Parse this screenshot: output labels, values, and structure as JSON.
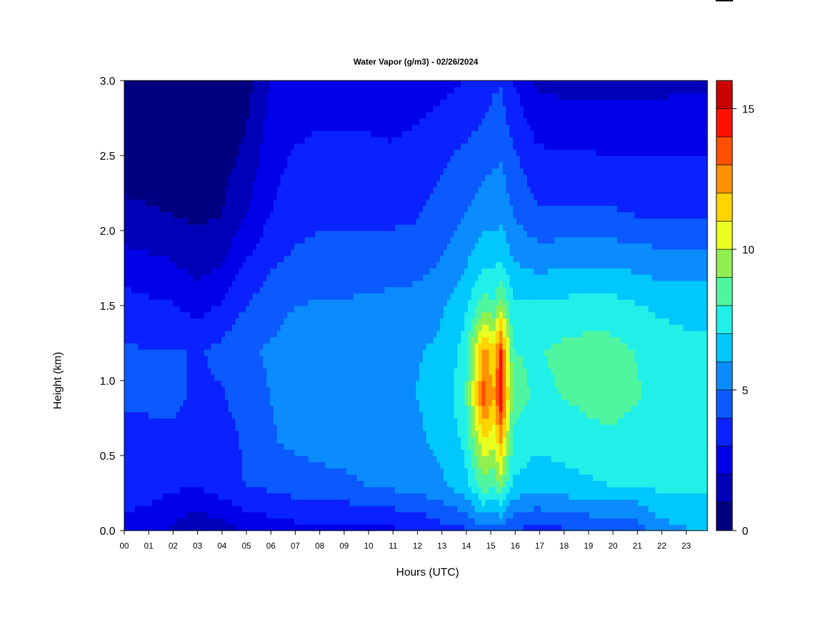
{
  "chart_data": {
    "type": "heatmap",
    "title": "Water Vapor (g/m3) - 02/26/2024",
    "xlabel": "Hours (UTC)",
    "ylabel": "Height (km)",
    "x_ticks": [
      "00",
      "01",
      "02",
      "03",
      "04",
      "05",
      "06",
      "07",
      "08",
      "09",
      "10",
      "11",
      "12",
      "13",
      "14",
      "15",
      "16",
      "17",
      "18",
      "19",
      "20",
      "21",
      "22",
      "23"
    ],
    "y_ticks": [
      "0.0",
      "0.5",
      "1.0",
      "1.5",
      "2.0",
      "2.5",
      "3.0"
    ],
    "xlim": [
      0,
      24
    ],
    "ylim": [
      0,
      3.0
    ],
    "colorbar": {
      "label_ticks": [
        "0",
        "5",
        "10",
        "15"
      ],
      "range": [
        0,
        16
      ],
      "levels": [
        0,
        1,
        2,
        3,
        4,
        5,
        6,
        7,
        8,
        9,
        10,
        11,
        12,
        13,
        14,
        15,
        16
      ],
      "colors": [
        "#000080",
        "#0000b8",
        "#0000e8",
        "#0a22ff",
        "#0a5aff",
        "#0a8cff",
        "#00c8ff",
        "#20f0e8",
        "#50f5a0",
        "#90f050",
        "#e8ff20",
        "#ffd400",
        "#ff9000",
        "#ff5000",
        "#ff1000",
        "#c80000",
        "#800000"
      ]
    },
    "series": [
      {
        "x": 0,
        "values": [
          2.6,
          3.6,
          3.4,
          4.4,
          4.2,
          3.4,
          2.4,
          1.2,
          0.6,
          0.3
        ]
      },
      {
        "x": 1,
        "values": [
          2.4,
          3.4,
          3.6,
          4.3,
          4.0,
          3.2,
          2.2,
          1.1,
          0.6,
          0.3
        ]
      },
      {
        "x": 2,
        "values": [
          1.8,
          3.2,
          3.7,
          4.4,
          4.1,
          3.1,
          2.0,
          1.0,
          0.5,
          0.3
        ]
      },
      {
        "x": 3,
        "values": [
          1.2,
          3.0,
          3.0,
          3.7,
          3.9,
          2.6,
          1.5,
          0.8,
          0.5,
          0.3
        ]
      },
      {
        "x": 4,
        "values": [
          1.5,
          3.6,
          3.4,
          3.9,
          4.3,
          3.1,
          1.9,
          1.0,
          0.6,
          0.3
        ]
      },
      {
        "x": 5,
        "values": [
          2.2,
          4.0,
          4.2,
          4.6,
          4.9,
          4.0,
          3.0,
          2.0,
          1.2,
          0.6
        ]
      },
      {
        "x": 6,
        "values": [
          2.4,
          4.2,
          4.9,
          5.0,
          5.1,
          4.6,
          3.8,
          3.0,
          2.6,
          2.0
        ]
      },
      {
        "x": 7,
        "values": [
          2.6,
          4.5,
          5.2,
          5.4,
          5.4,
          5.0,
          4.2,
          3.6,
          3.1,
          2.3
        ]
      },
      {
        "x": 8,
        "values": [
          2.7,
          4.6,
          5.4,
          5.6,
          5.5,
          5.1,
          4.4,
          3.8,
          3.3,
          2.4
        ]
      },
      {
        "x": 9,
        "values": [
          2.7,
          4.7,
          5.5,
          5.6,
          5.5,
          5.1,
          4.4,
          3.8,
          3.3,
          2.4
        ]
      },
      {
        "x": 10,
        "values": [
          2.7,
          5.0,
          5.6,
          5.7,
          5.6,
          5.2,
          4.5,
          3.8,
          3.3,
          2.3
        ]
      },
      {
        "x": 11,
        "values": [
          2.8,
          5.2,
          5.7,
          5.9,
          5.8,
          5.3,
          4.5,
          3.8,
          3.2,
          2.2
        ]
      },
      {
        "x": 12,
        "values": [
          3.0,
          5.4,
          5.8,
          6.0,
          5.9,
          5.4,
          4.6,
          3.9,
          3.4,
          2.4
        ]
      },
      {
        "x": 13,
        "values": [
          3.5,
          5.8,
          6.2,
          6.4,
          6.2,
          5.8,
          5.0,
          4.4,
          3.8,
          2.7
        ]
      },
      {
        "x": 14,
        "values": [
          3.8,
          6.5,
          7.2,
          7.6,
          7.3,
          6.7,
          5.8,
          5.0,
          4.2,
          3.0
        ]
      },
      {
        "x": 14.8,
        "values": [
          4.6,
          8.6,
          11.0,
          13.5,
          12.4,
          8.6,
          6.8,
          5.6,
          4.6,
          3.4
        ]
      },
      {
        "x": 15.2,
        "values": [
          4.2,
          8.0,
          10.2,
          12.0,
          11.2,
          8.2,
          6.6,
          5.6,
          4.8,
          3.8
        ]
      },
      {
        "x": 15.5,
        "values": [
          4.5,
          9.0,
          12.2,
          14.8,
          14.0,
          9.5,
          7.0,
          5.8,
          4.9,
          3.9
        ]
      },
      {
        "x": 16,
        "values": [
          4.0,
          6.8,
          7.8,
          8.4,
          8.0,
          7.2,
          6.0,
          5.0,
          4.2,
          3.0
        ]
      },
      {
        "x": 17,
        "values": [
          3.6,
          6.4,
          7.2,
          7.8,
          7.9,
          7.1,
          5.6,
          4.2,
          3.2,
          1.8
        ]
      },
      {
        "x": 18,
        "values": [
          3.8,
          6.6,
          7.4,
          8.0,
          8.2,
          7.3,
          5.7,
          4.2,
          3.1,
          1.7
        ]
      },
      {
        "x": 19,
        "values": [
          4.0,
          6.8,
          7.6,
          8.3,
          8.4,
          7.4,
          5.8,
          4.2,
          3.1,
          1.6
        ]
      },
      {
        "x": 20,
        "values": [
          4.1,
          7.0,
          7.8,
          8.4,
          8.4,
          7.4,
          5.8,
          4.2,
          3.0,
          1.6
        ]
      },
      {
        "x": 21,
        "values": [
          4.2,
          7.0,
          7.6,
          8.1,
          8.0,
          7.1,
          5.6,
          4.0,
          3.0,
          1.6
        ]
      },
      {
        "x": 22,
        "values": [
          5.5,
          7.2,
          7.5,
          7.8,
          7.6,
          6.8,
          5.4,
          4.0,
          3.0,
          1.7
        ]
      },
      {
        "x": 23,
        "values": [
          5.9,
          7.2,
          7.4,
          7.6,
          7.4,
          6.6,
          5.4,
          4.0,
          3.0,
          1.8
        ]
      },
      {
        "x": 24,
        "values": [
          6.0,
          7.2,
          7.4,
          7.6,
          7.4,
          6.6,
          5.4,
          4.0,
          3.0,
          1.8
        ]
      }
    ],
    "y_profile_km": [
      0.0,
      0.3,
      0.6,
      0.9,
      1.2,
      1.5,
      1.8,
      2.1,
      2.5,
      3.0
    ],
    "grid": false,
    "legend": "colorbar-right"
  }
}
